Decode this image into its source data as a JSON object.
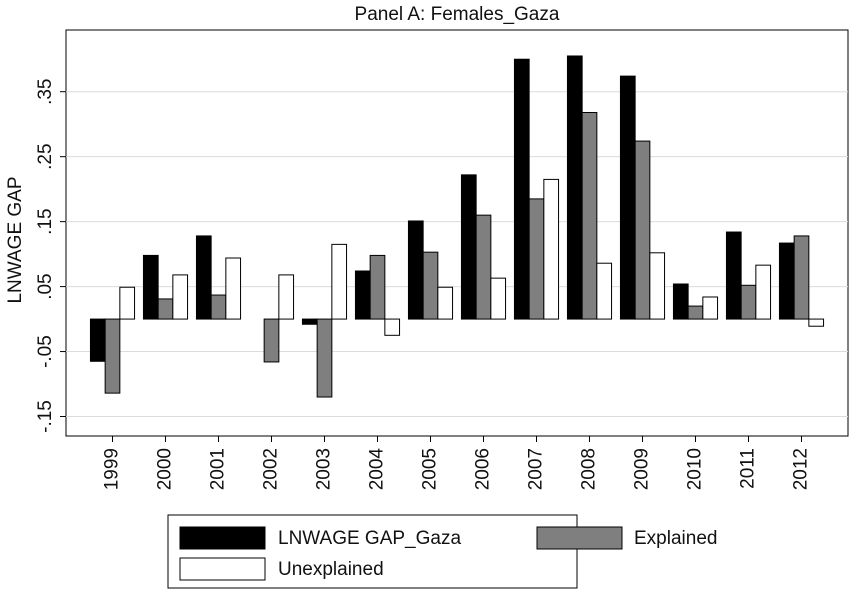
{
  "chart_data": {
    "type": "bar",
    "title": "Panel A: Females_Gaza",
    "y_label": "LNWAGE GAP",
    "categories": [
      "1999",
      "2000",
      "2001",
      "2002",
      "2003",
      "2004",
      "2005",
      "2006",
      "2007",
      "2008",
      "2009",
      "2010",
      "2011",
      "2012"
    ],
    "series": [
      {
        "name": "LNWAGE GAP_Gaza",
        "color": "#000000",
        "values": [
          -0.065,
          0.098,
          0.128,
          0,
          -0.008,
          0.074,
          0.151,
          0.222,
          0.4,
          0.405,
          0.374,
          0.054,
          0.134,
          0.117
        ]
      },
      {
        "name": "Explained",
        "color": "#7f7f7f",
        "values": [
          -0.114,
          0.031,
          0.037,
          -0.066,
          -0.12,
          0.098,
          0.103,
          0.16,
          0.185,
          0.318,
          0.274,
          0.02,
          0.052,
          0.128
        ]
      },
      {
        "name": "Unexplained",
        "color": "#ffffff",
        "values": [
          0.049,
          0.068,
          0.094,
          0.068,
          0.115,
          -0.025,
          0.049,
          0.063,
          0.215,
          0.086,
          0.102,
          0.034,
          0.083,
          -0.011
        ]
      }
    ],
    "ylim": [
      -0.18,
      0.445
    ],
    "yticks": [
      {
        "value": -0.15,
        "label": "-.15"
      },
      {
        "value": -0.05,
        "label": "-.05"
      },
      {
        "value": 0.05,
        "label": ".05"
      },
      {
        "value": 0.15,
        "label": ".15"
      },
      {
        "value": 0.25,
        "label": ".25"
      },
      {
        "value": 0.35,
        "label": ".35"
      }
    ],
    "grid": true,
    "legend_position": "bottom"
  }
}
